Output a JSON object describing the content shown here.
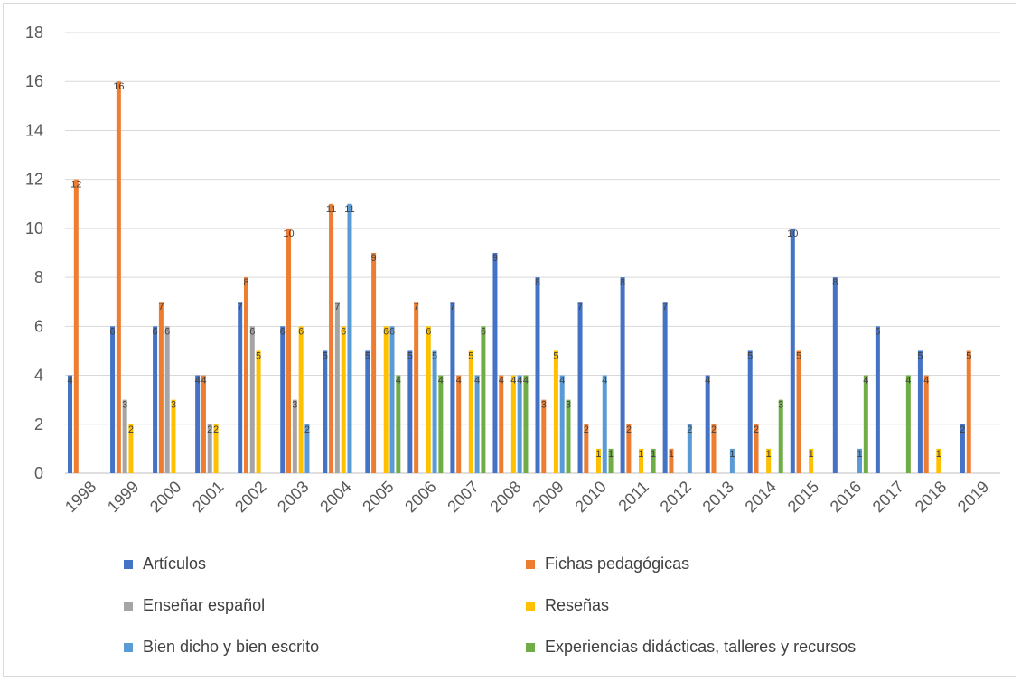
{
  "chart_data": {
    "type": "bar",
    "title": "",
    "xlabel": "",
    "ylabel": "",
    "ylim": [
      0,
      18
    ],
    "y_ticks": [
      0,
      2,
      4,
      6,
      8,
      10,
      12,
      14,
      16,
      18
    ],
    "grid": true,
    "legend_position": "bottom",
    "categories": [
      "1998",
      "1999",
      "2000",
      "2001",
      "2002",
      "2003",
      "2004",
      "2005",
      "2006",
      "2007",
      "2008",
      "2009",
      "2010",
      "2011",
      "2012",
      "2013",
      "2014",
      "2015",
      "2016",
      "2017",
      "2018",
      "2019"
    ],
    "series": [
      {
        "name": "Artículos",
        "color": "#4472c4",
        "values": [
          4,
          6,
          6,
          4,
          7,
          6,
          5,
          5,
          5,
          7,
          9,
          8,
          7,
          8,
          7,
          4,
          5,
          10,
          8,
          6,
          5,
          2
        ]
      },
      {
        "name": "Fichas pedagógicas",
        "color": "#ed7d31",
        "values": [
          12,
          16,
          7,
          4,
          8,
          10,
          11,
          9,
          7,
          4,
          4,
          3,
          2,
          2,
          1,
          2,
          2,
          5,
          null,
          null,
          4,
          5
        ]
      },
      {
        "name": "Enseñar español",
        "color": "#a5a5a5",
        "values": [
          null,
          3,
          6,
          2,
          6,
          3,
          7,
          null,
          null,
          null,
          null,
          null,
          null,
          null,
          null,
          null,
          null,
          null,
          null,
          null,
          null,
          null
        ]
      },
      {
        "name": "Reseñas",
        "color": "#ffc000",
        "values": [
          null,
          2,
          3,
          2,
          5,
          6,
          6,
          6,
          6,
          5,
          4,
          5,
          1,
          1,
          null,
          null,
          1,
          1,
          null,
          null,
          1,
          null
        ]
      },
      {
        "name": "Bien dicho y bien escrito",
        "color": "#5b9bd5",
        "values": [
          null,
          null,
          null,
          null,
          null,
          2,
          11,
          6,
          5,
          4,
          4,
          4,
          4,
          null,
          2,
          1,
          null,
          null,
          1,
          null,
          null,
          null
        ]
      },
      {
        "name": "Experiencias didácticas, talleres y recursos",
        "color": "#70ad47",
        "values": [
          null,
          null,
          null,
          null,
          null,
          null,
          null,
          4,
          4,
          6,
          4,
          3,
          1,
          1,
          null,
          null,
          3,
          null,
          4,
          4,
          null,
          null
        ]
      }
    ]
  }
}
